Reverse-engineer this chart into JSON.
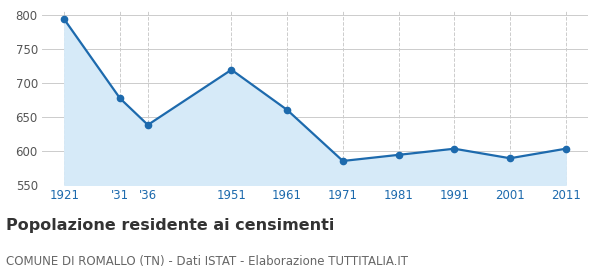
{
  "years": [
    1921,
    1931,
    1936,
    1951,
    1961,
    1971,
    1981,
    1991,
    2001,
    2011
  ],
  "values": [
    793,
    677,
    638,
    719,
    660,
    585,
    594,
    603,
    589,
    603
  ],
  "x_labels": [
    "1921",
    "'31",
    "'36",
    "1951",
    "1961",
    "1971",
    "1981",
    "1991",
    "2001",
    "2011"
  ],
  "ylim": [
    550,
    805
  ],
  "yticks": [
    550,
    600,
    650,
    700,
    750,
    800
  ],
  "line_color": "#1d6aad",
  "fill_color": "#d6eaf8",
  "marker_size": 4.5,
  "line_width": 1.6,
  "grid_color": "#cccccc",
  "title": "Popolazione residente ai censimenti",
  "subtitle": "COMUNE DI ROMALLO (TN) - Dati ISTAT - Elaborazione TUTTITALIA.IT",
  "title_fontsize": 11.5,
  "subtitle_fontsize": 8.5,
  "xtick_fontsize": 8.5,
  "ytick_fontsize": 8.5,
  "title_color": "#333333",
  "subtitle_color": "#666666",
  "xtick_color": "#1d6aad",
  "bg_color": "#ffffff"
}
